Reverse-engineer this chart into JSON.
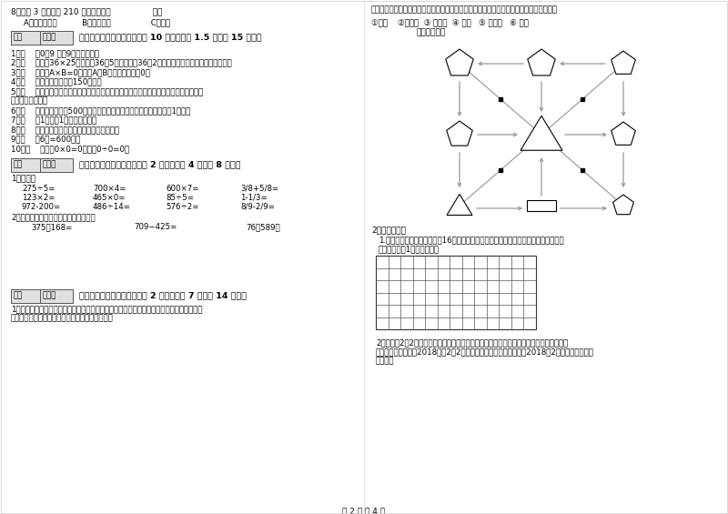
{
  "bg_color": "#ffffff",
  "text_color": "#000000",
  "box_fill": "#d8d8d8",
  "footer_text": "第 2 页 共 4 页",
  "q8_line1": "8．爸爸 3 小时行了 210 千米，他是（                ）。",
  "q8_line2": "A．乘公共汽车          B．骑自行车                C．步行",
  "s3_title": "三、仔细推敬，正确判断（共 10 小题，每题 1.5 分，共 15 分）。",
  "s3_items": [
    "1．（    ）0．9 里有9个十分之一。",
    "2．（    ）计算36×25时，先把36和5相乘，再把36和2相乘，最后把两次乘得的结果相加。",
    "3．（    ）如果A×B=0，那么A和B中至少有一个是0。",
    "4．（    ）一本故事书的重150千克。",
    "5．（    ）用同一条铁丝先围成一个最大的正方形，再围成一个最大的长方形，长方形和正",
    "方形的周长相等。",
    "6．（    ）小明家离学校500米，他每天上学、回家，一个来回一共要走1千米。",
    "7．（    ）1吨铁与1吨棉花一样重。",
    "8．（    ）长方形的周长就是它四条边长度的和。",
    "9．（    ）6分=600秒。",
    "10．（    ）因为0×0=0，所以0÷0=0。"
  ],
  "s4_title": "四、看清题目，细心计算（共 2 小题，每题 4 分，共 8 分）。",
  "s4_oral_label": "1．口算。",
  "s4_oral": [
    [
      "275÷5=",
      "700×4=",
      "600×7=",
      "3/8+5/8="
    ],
    [
      "123×2=",
      "465×0=",
      "85÷5=",
      "1-1/3="
    ],
    [
      "972-200=",
      "486÷14=",
      "576÷2=",
      "8/9-2/9="
    ]
  ],
  "s4_vert_label": "2．竖式计算，要求验算的请写出验算。",
  "s4_vert": [
    "375＋168=",
    "709−425=",
    "76＋589＝"
  ],
  "s5_title": "五、认真思考，综合能力（共 2 小题，每题 7 分，共 14 否）。",
  "s5_q1_l1": "1．走进动物园大门，正北面是狮子山和熊猫馈，狮子山的东侧是飞禁馈，西侧是魄园。大象",
  "s5_q1_l2": "馈和鱼馈的场地分别在动物园的东北角和西北角。",
  "r_intro": "根据小强的描述，请你把这些动物场馈所在的位置，在动物园的导游图上用序号表示出来。",
  "r_labels": "①狮山    ②熊猫馈  ③ 飞禁馈  ④ 魔园   ⑤ 大象馈   ⑥ 鱼馈",
  "r_map_title": "动物园导游图",
  "r_handson": "2．动手操作。",
  "r_grid_l1": "1.在下面方格纸上画出面积是16平方厘米的长方形和正方形。标出相应的长、宽或边长",
  "r_grid_l2": "（每一小格为1平方厘米）。",
  "r_cal_l1": "2．每年的2月2日是世界湿地日。在这一天，世界各国都举行不同形式的活动来宣传保护自",
  "r_cal_l2": "然资源和生态环境。2018年的2月2日是星期五。请你根据信息制作2018年2月份的月历，并回",
  "r_cal_l3": "答问题。"
}
